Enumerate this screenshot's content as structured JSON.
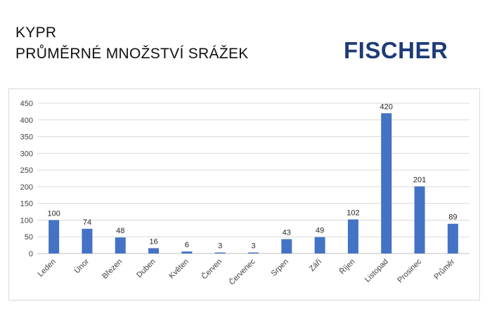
{
  "header": {
    "title_line1": "KYPR",
    "title_line2": "PRŮMĚRNÉ MNOŽSTVÍ SRÁŽEK",
    "brand_name": "FISCHER",
    "brand_color": "#1e3b77"
  },
  "chart_data": {
    "type": "bar",
    "title": "",
    "xlabel": "",
    "ylabel": "",
    "categories": [
      "Leden",
      "Únor",
      "Březen",
      "Duben",
      "Květen",
      "Červen",
      "Červenec",
      "Srpen",
      "Září",
      "Říjen",
      "Listopad",
      "Prosinec",
      "Průměr"
    ],
    "series": [
      {
        "values": [
          100,
          74,
          48,
          16,
          6,
          3,
          3,
          43,
          49,
          102,
          420,
          201,
          89
        ],
        "color": "#4472c4"
      }
    ],
    "ylim": [
      0,
      450
    ],
    "yticks": [
      0,
      50,
      100,
      150,
      200,
      250,
      300,
      350,
      400,
      450
    ],
    "grid": true,
    "data_labels": true,
    "legend": "none"
  }
}
